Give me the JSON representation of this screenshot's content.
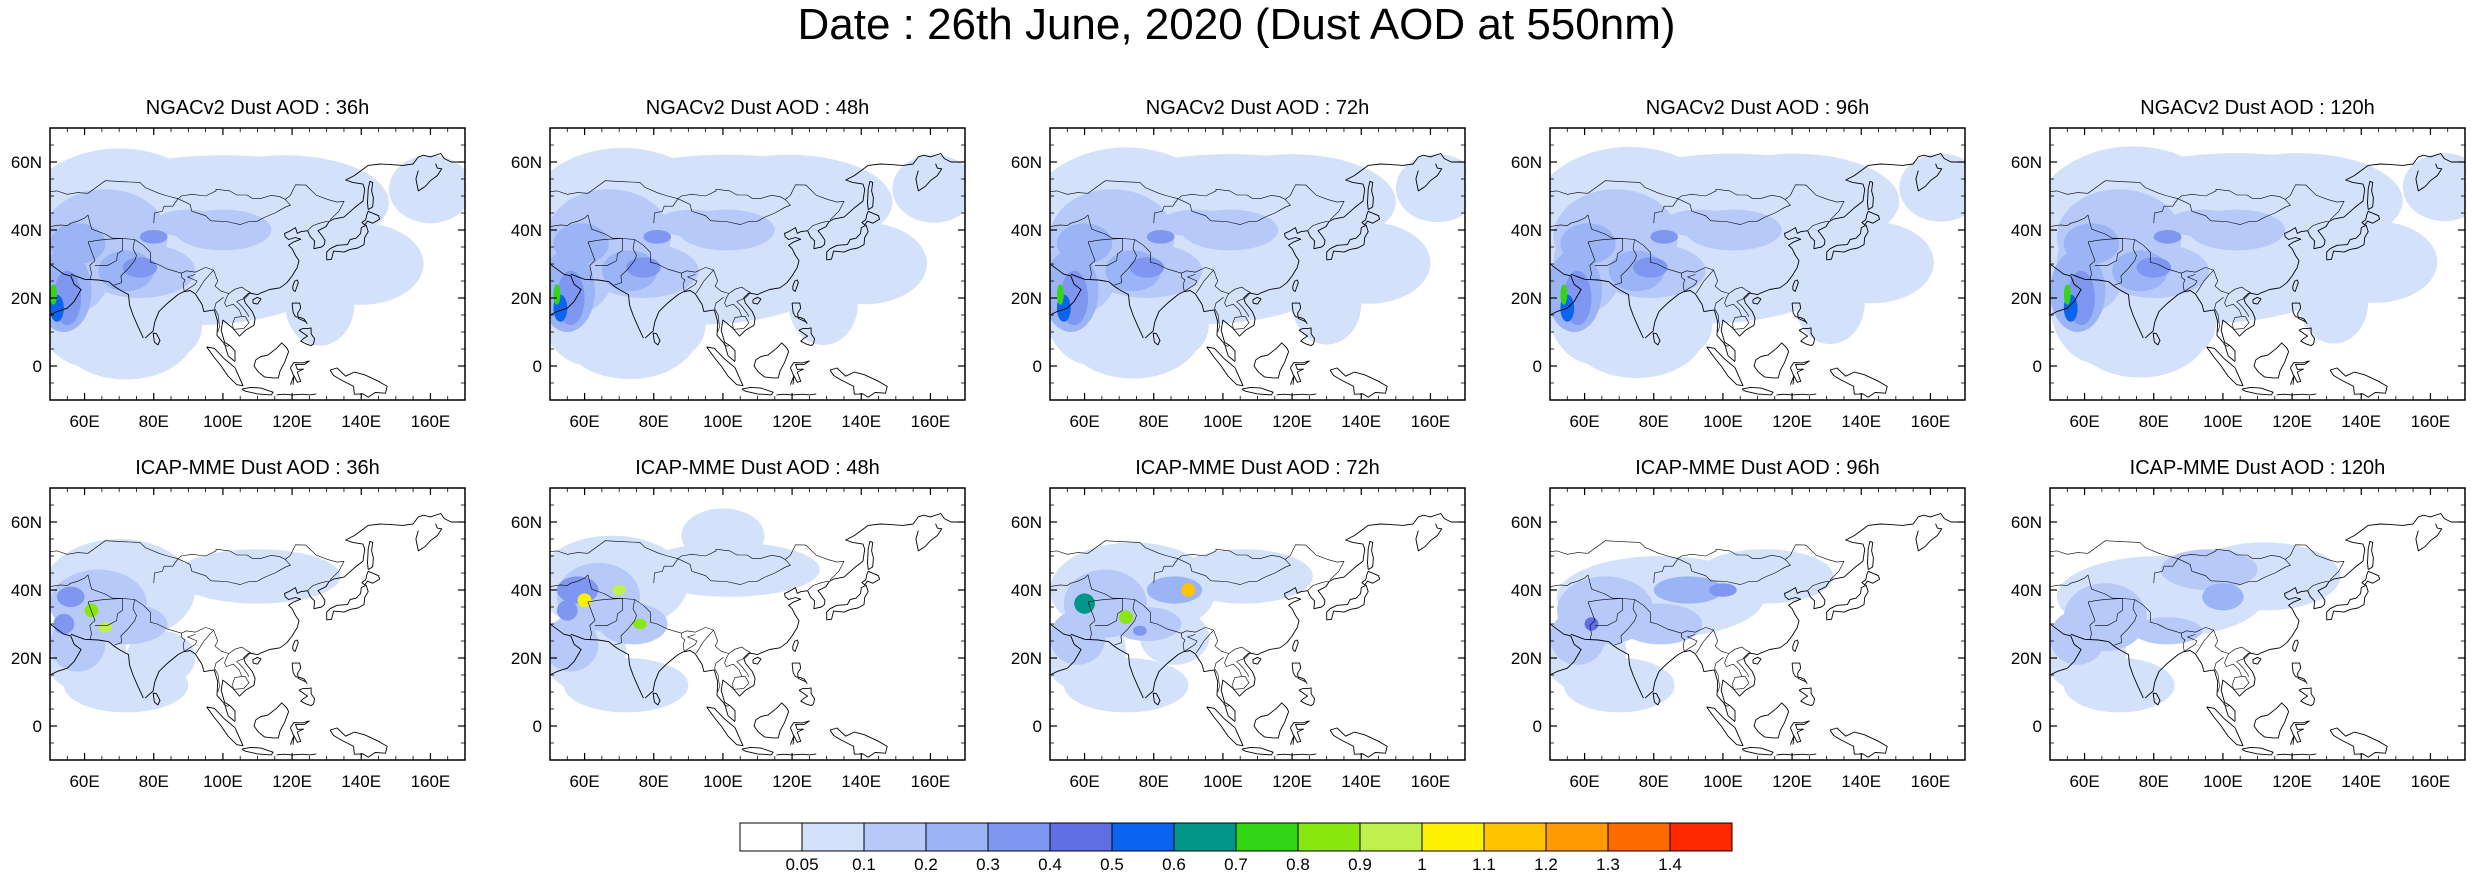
{
  "title": "Date : 26th June, 2020 (Dust AOD at 550nm)",
  "map_extent": {
    "lon": [
      50,
      170
    ],
    "lat": [
      -10,
      70
    ]
  },
  "x_ticks": [
    "60E",
    "80E",
    "100E",
    "120E",
    "140E",
    "160E"
  ],
  "x_tick_values": [
    60,
    80,
    100,
    120,
    140,
    160
  ],
  "y_ticks": [
    "60N",
    "40N",
    "20N",
    "0"
  ],
  "y_tick_values": [
    60,
    40,
    20,
    0
  ],
  "panels": [
    {
      "title": "NGACv2 Dust AOD : 36h",
      "model": "NGACv2",
      "lead": "36h"
    },
    {
      "title": "NGACv2 Dust AOD : 48h",
      "model": "NGACv2",
      "lead": "48h"
    },
    {
      "title": "NGACv2 Dust AOD : 72h",
      "model": "NGACv2",
      "lead": "72h"
    },
    {
      "title": "NGACv2 Dust AOD : 96h",
      "model": "NGACv2",
      "lead": "96h"
    },
    {
      "title": "NGACv2 Dust AOD : 120h",
      "model": "NGACv2",
      "lead": "120h"
    },
    {
      "title": "ICAP-MME Dust AOD : 36h",
      "model": "ICAP-MME",
      "lead": "36h"
    },
    {
      "title": "ICAP-MME Dust AOD : 48h",
      "model": "ICAP-MME",
      "lead": "48h"
    },
    {
      "title": "ICAP-MME Dust AOD : 72h",
      "model": "ICAP-MME",
      "lead": "72h"
    },
    {
      "title": "ICAP-MME Dust AOD : 96h",
      "model": "ICAP-MME",
      "lead": "96h"
    },
    {
      "title": "ICAP-MME Dust AOD : 120h",
      "model": "ICAP-MME",
      "lead": "120h"
    }
  ],
  "colorbar": {
    "labels": [
      "0.05",
      "0.1",
      "0.2",
      "0.3",
      "0.4",
      "0.5",
      "0.6",
      "0.7",
      "0.8",
      "0.9",
      "1",
      "1.1",
      "1.2",
      "1.3",
      "1.4"
    ],
    "colors": [
      "#ffffff",
      "#d4e1fb",
      "#b6c9f8",
      "#9bb4f5",
      "#7f97f0",
      "#5f6fe6",
      "#0a64ef",
      "#00968a",
      "#33d615",
      "#8ae60f",
      "#bff04c",
      "#fff200",
      "#ffc300",
      "#ff9b00",
      "#ff6a00",
      "#ff2a00"
    ]
  }
}
